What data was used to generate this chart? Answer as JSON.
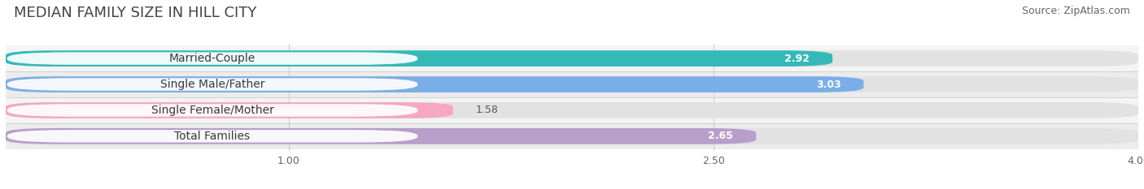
{
  "title": "MEDIAN FAMILY SIZE IN HILL CITY",
  "source": "Source: ZipAtlas.com",
  "categories": [
    "Married-Couple",
    "Single Male/Father",
    "Single Female/Mother",
    "Total Families"
  ],
  "values": [
    2.92,
    3.03,
    1.58,
    2.65
  ],
  "bar_colors": [
    "#35b8b8",
    "#7aaee8",
    "#f5a8c0",
    "#b89ecb"
  ],
  "xmin": 0,
  "xmax": 4.0,
  "xticks": [
    1.0,
    2.5,
    4.0
  ],
  "bar_height": 0.62,
  "background_color": "#ffffff",
  "row_bg_color": "#f4f4f4",
  "title_fontsize": 13,
  "source_fontsize": 9,
  "label_fontsize": 10,
  "value_fontsize": 9
}
